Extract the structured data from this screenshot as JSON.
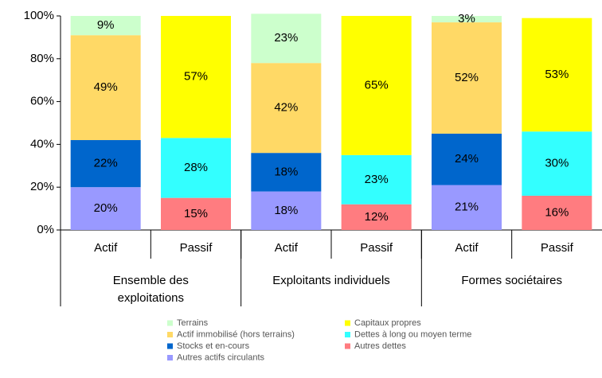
{
  "chart_data": {
    "type": "stacked_bar_percent",
    "categories": [
      "Actif",
      "Passif",
      "Actif",
      "Passif",
      "Actif",
      "Passif"
    ],
    "groups": [
      {
        "lines": [
          "Ensemble des",
          "exploitations"
        ],
        "span": 2
      },
      {
        "lines": [
          "Exploitants individuels"
        ],
        "span": 2
      },
      {
        "lines": [
          "Formes sociétaires"
        ],
        "span": 2
      }
    ],
    "series": [
      {
        "name": "Autres actifs circulants",
        "color": "#9999ff",
        "values": [
          20,
          null,
          18,
          null,
          21,
          null
        ],
        "value_labels": [
          "20%",
          null,
          "18%",
          null,
          "21%",
          null
        ]
      },
      {
        "name": "Stocks et en-cours",
        "color": "#0066cc",
        "values": [
          22,
          null,
          18,
          null,
          24,
          null
        ],
        "value_labels": [
          "22%",
          null,
          "18%",
          null,
          "24%",
          null
        ]
      },
      {
        "name": "Actif immobilisé (hors terrains)",
        "color": "#ffd966",
        "values": [
          49,
          null,
          42,
          null,
          52,
          null
        ],
        "value_labels": [
          "49%",
          null,
          "42%",
          null,
          "52%",
          null
        ]
      },
      {
        "name": "Terrains",
        "color": "#ccffcc",
        "values": [
          9,
          null,
          23,
          null,
          3,
          null
        ],
        "value_labels": [
          "9%",
          null,
          "23%",
          null,
          "3%",
          null
        ]
      },
      {
        "name": "Autres dettes",
        "color": "#ff7c80",
        "values": [
          null,
          15,
          null,
          12,
          null,
          16
        ],
        "value_labels": [
          null,
          "15%",
          null,
          "12%",
          null,
          "16%"
        ]
      },
      {
        "name": "Dettes à long ou moyen terme",
        "color": "#33ffff",
        "values": [
          null,
          28,
          null,
          23,
          null,
          30
        ],
        "value_labels": [
          null,
          "28%",
          null,
          "23%",
          null,
          "30%"
        ]
      },
      {
        "name": "Capitaux propres",
        "color": "#ffff00",
        "values": [
          null,
          57,
          null,
          65,
          null,
          53
        ],
        "value_labels": [
          null,
          "57%",
          null,
          "65%",
          null,
          "53%"
        ]
      }
    ],
    "ylim": [
      0,
      100
    ],
    "yticks": [
      {
        "value": 0,
        "label": "0%"
      },
      {
        "value": 20,
        "label": "20%"
      },
      {
        "value": 40,
        "label": "40%"
      },
      {
        "value": 60,
        "label": "60%"
      },
      {
        "value": 80,
        "label": "80%"
      },
      {
        "value": 100,
        "label": "100%"
      }
    ]
  }
}
